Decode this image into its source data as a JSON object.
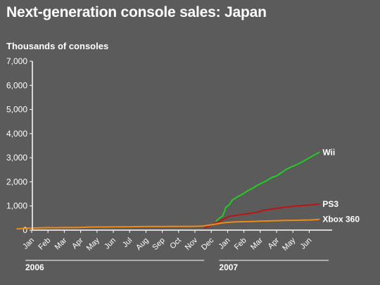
{
  "chart_data": {
    "type": "line",
    "title": "Next-generation console sales: Japan",
    "ylabel": "Thousands of consoles",
    "xlabel": "",
    "ylim": [
      0,
      7000
    ],
    "yticks": [
      0,
      1000,
      2000,
      3000,
      4000,
      5000,
      6000,
      7000
    ],
    "ytick_labels": [
      "0",
      "1,000",
      "2,000",
      "3,000",
      "4,000",
      "5,000",
      "6,000",
      "7,000"
    ],
    "x_categories": [
      "Jan",
      "Feb",
      "Mar",
      "Apr",
      "May",
      "Jun",
      "Jul",
      "Aug",
      "Sep",
      "Oct",
      "Nov",
      "Dec",
      "Jan",
      "Feb",
      "Mar",
      "Apr",
      "May",
      "Jun"
    ],
    "year_groups": [
      {
        "label": "2006",
        "start": 0,
        "end": 11
      },
      {
        "label": "2007",
        "start": 12,
        "end": 17
      }
    ],
    "grid": false,
    "series": [
      {
        "name": "Wii",
        "color": "#22cc22",
        "points": [
          [
            11.3,
            380
          ],
          [
            11.5,
            500
          ],
          [
            11.7,
            580
          ],
          [
            11.9,
            950
          ],
          [
            12.1,
            1050
          ],
          [
            12.3,
            1250
          ],
          [
            12.6,
            1380
          ],
          [
            12.9,
            1480
          ],
          [
            13.2,
            1620
          ],
          [
            13.5,
            1720
          ],
          [
            13.8,
            1850
          ],
          [
            14.1,
            1950
          ],
          [
            14.4,
            2050
          ],
          [
            14.7,
            2180
          ],
          [
            15.0,
            2250
          ],
          [
            15.3,
            2380
          ],
          [
            15.6,
            2520
          ],
          [
            15.9,
            2620
          ],
          [
            16.2,
            2700
          ],
          [
            16.5,
            2800
          ],
          [
            16.8,
            2920
          ],
          [
            17.1,
            3030
          ],
          [
            17.4,
            3150
          ],
          [
            17.6,
            3220
          ]
        ]
      },
      {
        "name": "PS3",
        "color": "#bb1414",
        "points": [
          [
            10.6,
            100
          ],
          [
            10.9,
            170
          ],
          [
            11.2,
            270
          ],
          [
            11.5,
            360
          ],
          [
            11.8,
            470
          ],
          [
            12.1,
            570
          ],
          [
            12.4,
            600
          ],
          [
            12.8,
            640
          ],
          [
            13.2,
            680
          ],
          [
            13.6,
            720
          ],
          [
            14.0,
            770
          ],
          [
            14.2,
            820
          ],
          [
            14.6,
            860
          ],
          [
            15.0,
            900
          ],
          [
            15.4,
            940
          ],
          [
            15.8,
            970
          ],
          [
            16.2,
            1000
          ],
          [
            16.6,
            1020
          ],
          [
            17.0,
            1040
          ],
          [
            17.3,
            1060
          ],
          [
            17.6,
            1080
          ]
        ]
      },
      {
        "name": "Xbox 360",
        "color": "#ee8a1a",
        "points": [
          [
            -0.9,
            50
          ],
          [
            -0.5,
            70
          ],
          [
            0.0,
            85
          ],
          [
            0.5,
            95
          ],
          [
            1.0,
            105
          ],
          [
            1.5,
            100
          ],
          [
            2.0,
            110
          ],
          [
            2.5,
            105
          ],
          [
            3.0,
            115
          ],
          [
            3.5,
            125
          ],
          [
            4.0,
            130
          ],
          [
            4.5,
            132
          ],
          [
            5.0,
            135
          ],
          [
            5.5,
            138
          ],
          [
            6.0,
            140
          ],
          [
            6.5,
            145
          ],
          [
            7.0,
            148
          ],
          [
            7.5,
            150
          ],
          [
            8.0,
            150
          ],
          [
            8.5,
            152
          ],
          [
            9.0,
            153
          ],
          [
            9.5,
            155
          ],
          [
            10.0,
            158
          ],
          [
            10.5,
            165
          ],
          [
            11.0,
            220
          ],
          [
            11.5,
            280
          ],
          [
            12.0,
            320
          ],
          [
            12.5,
            340
          ],
          [
            13.0,
            350
          ],
          [
            13.5,
            360
          ],
          [
            14.0,
            370
          ],
          [
            14.5,
            380
          ],
          [
            15.0,
            390
          ],
          [
            15.5,
            400
          ],
          [
            16.0,
            405
          ],
          [
            16.5,
            410
          ],
          [
            17.0,
            420
          ],
          [
            17.4,
            435
          ],
          [
            17.6,
            450
          ]
        ]
      }
    ]
  }
}
